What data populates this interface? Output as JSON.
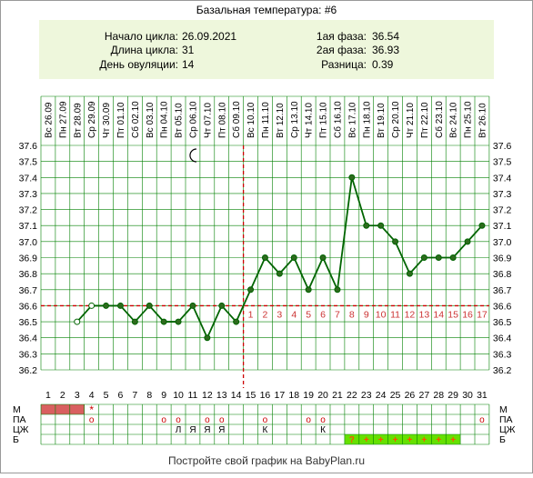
{
  "title": "Базальная температура: #6",
  "summary": {
    "cycle_start_label": "Начало цикла:",
    "cycle_start": "26.09.2021",
    "cycle_length_label": "Длина цикла:",
    "cycle_length": "31",
    "ovulation_day_label": "День овуляции:",
    "ovulation_day": "14",
    "phase1_label": "1ая фаза:",
    "phase1": "36.54",
    "phase2_label": "2ая фаза:",
    "phase2": "36.93",
    "diff_label": "Разница:",
    "diff": "0.39"
  },
  "footer": "Постройте свой график на BabyPlan.ru",
  "colors": {
    "line": "#006400",
    "grid": "#008000",
    "marker_fill": "#2e6b1e",
    "overline": "#cc0000",
    "post_ov_numbers": "#cc3333",
    "summary_bg": "#eef7dc",
    "menstruation": "#d96060",
    "b_cells": "#66e000"
  },
  "chart_data": {
    "type": "line",
    "title": "Базальная температура: #6",
    "ylim": [
      36.2,
      37.6
    ],
    "yticks": [
      "36.2",
      "36.3",
      "36.4",
      "36.5",
      "36.6",
      "36.7",
      "36.8",
      "36.9",
      "37.0",
      "37.1",
      "37.2",
      "37.3",
      "37.4",
      "37.5",
      "37.6"
    ],
    "dates": [
      "Вс 26.09",
      "Пн 27.09",
      "Вт 28.09",
      "Ср 29.09",
      "Чт 30.09",
      "Пт 01.10",
      "Сб 02.10",
      "Вс 03.10",
      "Пн 04.10",
      "Вт 05.10",
      "Ср 06.10",
      "Чт 07.10",
      "Пт 08.10",
      "Сб 09.10",
      "Вс 10.10",
      "Пн 11.10",
      "Вт 12.10",
      "Ср 13.10",
      "Чт 14.10",
      "Пт 15.10",
      "Сб 16.10",
      "Вс 17.10",
      "Пн 18.10",
      "Вт 19.10",
      "Ср 20.10",
      "Чт 21.10",
      "Пт 22.10",
      "Сб 23.10",
      "Вс 24.10",
      "Пн 25.10",
      "Вт 26.10"
    ],
    "days": [
      1,
      2,
      3,
      4,
      5,
      6,
      7,
      8,
      9,
      10,
      11,
      12,
      13,
      14,
      15,
      16,
      17,
      18,
      19,
      20,
      21,
      22,
      23,
      24,
      25,
      26,
      27,
      28,
      29,
      30,
      31
    ],
    "temperatures": [
      null,
      null,
      36.5,
      36.6,
      36.6,
      36.6,
      36.5,
      36.6,
      36.5,
      36.5,
      36.6,
      36.4,
      36.6,
      36.5,
      36.7,
      36.9,
      36.8,
      36.9,
      36.7,
      36.9,
      36.7,
      37.4,
      37.1,
      37.1,
      37.0,
      36.8,
      36.9,
      36.9,
      36.9,
      37.0,
      37.1
    ],
    "open_markers_days": [
      3,
      4
    ],
    "coverline": 36.6,
    "ovulation_day": 14,
    "post_ovulation_numbers": [
      "1",
      "2",
      "3",
      "4",
      "5",
      "6",
      "7",
      "8",
      "9",
      "10",
      "11",
      "12",
      "13",
      "14",
      "15",
      "16",
      "17"
    ],
    "moon_day": 11,
    "table": {
      "row_labels": [
        "М",
        "ПА",
        "ЦЖ",
        "Б"
      ],
      "M": {
        "menstruation_days": [
          1,
          2,
          3
        ],
        "star_day": 4,
        "star": "*"
      },
      "PA": {
        "circle_days": [
          4,
          9,
          10,
          12,
          13,
          16,
          19,
          20,
          31
        ],
        "circle": "o"
      },
      "CZH": {
        "10": "Л",
        "11": "Я",
        "12": "Я",
        "13": "Я",
        "16": "К",
        "20": "К"
      },
      "B": {
        "22": "?",
        "23": "+",
        "24": "+",
        "25": "+",
        "26": "+",
        "27": "+",
        "28": "+",
        "29": "+"
      }
    }
  }
}
